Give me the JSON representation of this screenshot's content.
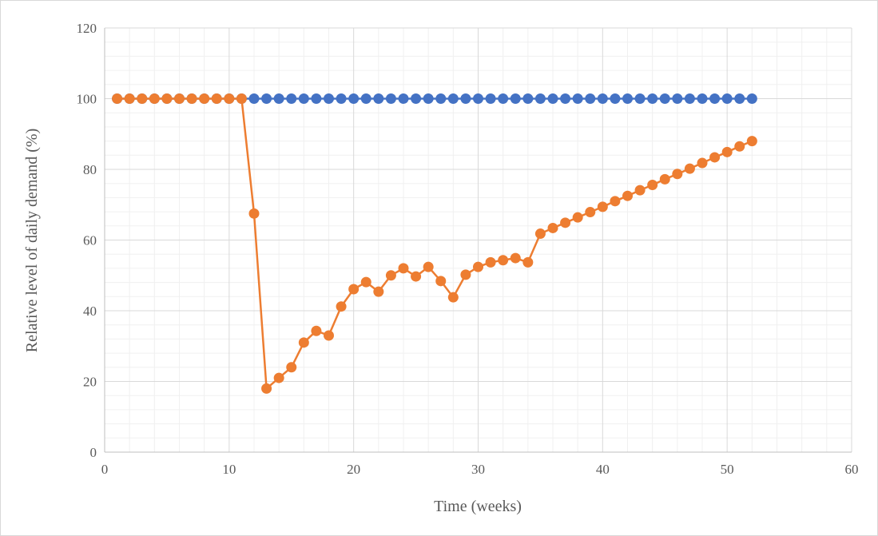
{
  "chart_data": {
    "type": "line",
    "title": "",
    "xlabel": "Time (weeks)",
    "ylabel": "Relative level of daily demand (%)",
    "xlim": [
      0,
      60
    ],
    "ylim": [
      0,
      120
    ],
    "x_ticks": [
      0,
      10,
      20,
      30,
      40,
      50,
      60
    ],
    "y_ticks": [
      0,
      20,
      40,
      60,
      80,
      100,
      120
    ],
    "grid": true,
    "legend": "none",
    "series": [
      {
        "color": "#4472C4",
        "x": [
          1,
          2,
          3,
          4,
          5,
          6,
          7,
          8,
          9,
          10,
          11,
          12,
          13,
          14,
          15,
          16,
          17,
          18,
          19,
          20,
          21,
          22,
          23,
          24,
          25,
          26,
          27,
          28,
          29,
          30,
          31,
          32,
          33,
          34,
          35,
          36,
          37,
          38,
          39,
          40,
          41,
          42,
          43,
          44,
          45,
          46,
          47,
          48,
          49,
          50,
          51,
          52
        ],
        "y": [
          100,
          100,
          100,
          100,
          100,
          100,
          100,
          100,
          100,
          100,
          100,
          100,
          100,
          100,
          100,
          100,
          100,
          100,
          100,
          100,
          100,
          100,
          100,
          100,
          100,
          100,
          100,
          100,
          100,
          100,
          100,
          100,
          100,
          100,
          100,
          100,
          100,
          100,
          100,
          100,
          100,
          100,
          100,
          100,
          100,
          100,
          100,
          100,
          100,
          100,
          100,
          100
        ]
      },
      {
        "color": "#ED7D31",
        "x": [
          1,
          2,
          3,
          4,
          5,
          6,
          7,
          8,
          9,
          10,
          11,
          12,
          13,
          14,
          15,
          16,
          17,
          18,
          19,
          20,
          21,
          22,
          23,
          24,
          25,
          26,
          27,
          28,
          29,
          30,
          31,
          32,
          33,
          34,
          35,
          36,
          37,
          38,
          39,
          40,
          41,
          42,
          43,
          44,
          45,
          46,
          47,
          48,
          49,
          50,
          51,
          52
        ],
        "y": [
          100,
          100,
          100,
          100,
          100,
          100,
          100,
          100,
          100,
          100,
          100,
          67.5,
          18,
          21,
          24,
          31,
          34.3,
          33,
          41.2,
          46.1,
          48.1,
          45.4,
          50,
          52,
          49.7,
          52.4,
          48.4,
          43.8,
          50.2,
          52.4,
          53.7,
          54.3,
          54.9,
          53.7,
          61.8,
          63.4,
          64.9,
          66.4,
          67.9,
          69.4,
          71,
          72.5,
          74.1,
          75.6,
          77.2,
          78.7,
          80.2,
          81.8,
          83.4,
          84.9,
          86.5,
          88
        ]
      }
    ]
  }
}
